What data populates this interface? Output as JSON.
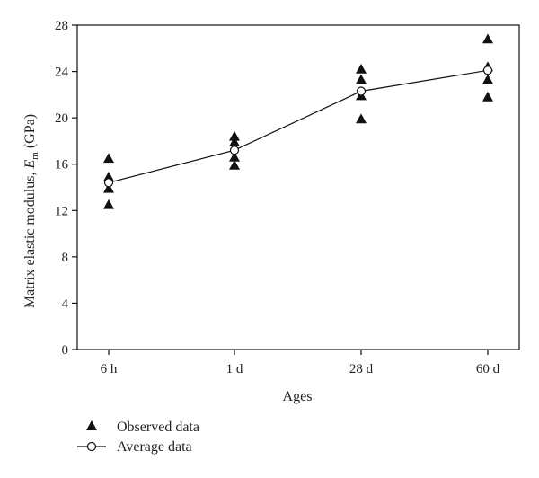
{
  "chart_data": {
    "type": "scatter",
    "categories": [
      "6 h",
      "1 d",
      "28 d",
      "60 d"
    ],
    "xlabel": "Ages",
    "ylabel_prefix": "Matrix elastic modulus, ",
    "ylabel_symbol": "E",
    "ylabel_subscript": "m",
    "ylabel_unit": " (GPa)",
    "ylim": [
      0,
      28
    ],
    "yticks": [
      "0",
      "4",
      "8",
      "12",
      "16",
      "20",
      "24",
      "28"
    ],
    "grid": false,
    "legend_position": "bottom-left",
    "series": [
      {
        "name": "Observed data",
        "marker": "filled-triangle",
        "color": "#111111",
        "points": [
          [
            0,
            16.5
          ],
          [
            0,
            14.9
          ],
          [
            0,
            13.9
          ],
          [
            0,
            12.5
          ],
          [
            1,
            18.4
          ],
          [
            1,
            17.9
          ],
          [
            1,
            16.6
          ],
          [
            1,
            15.9
          ],
          [
            2,
            24.2
          ],
          [
            2,
            23.3
          ],
          [
            2,
            21.9
          ],
          [
            2,
            19.9
          ],
          [
            3,
            26.8
          ],
          [
            3,
            24.4
          ],
          [
            3,
            23.3
          ],
          [
            3,
            21.8
          ]
        ]
      },
      {
        "name": "Average data",
        "marker": "open-circle-line",
        "color": "#111111",
        "values": [
          14.4,
          17.2,
          22.3,
          24.1
        ]
      }
    ]
  }
}
